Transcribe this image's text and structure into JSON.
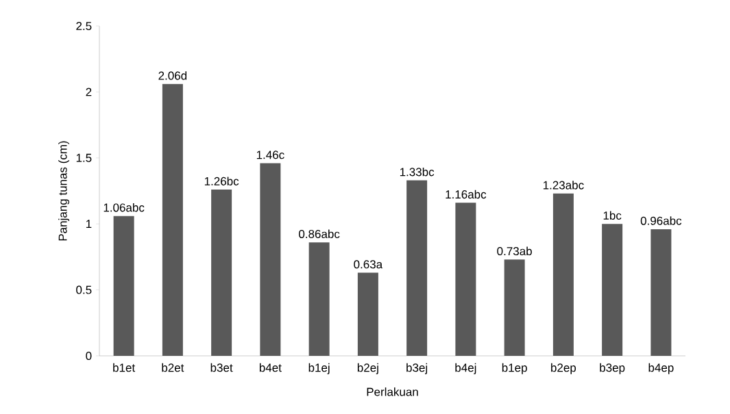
{
  "chart_data": {
    "type": "bar",
    "xlabel": "Perlakuan",
    "ylabel": "Panjang tunas (cm)",
    "categories": [
      "b1et",
      "b2et",
      "b3et",
      "b4et",
      "b1ej",
      "b2ej",
      "b3ej",
      "b4ej",
      "b1ep",
      "b2ep",
      "b3ep",
      "b4ep"
    ],
    "values": [
      1.06,
      2.06,
      1.26,
      1.46,
      0.86,
      0.63,
      1.33,
      1.16,
      0.73,
      1.23,
      1.0,
      0.96
    ],
    "value_labels": [
      "1.06abc",
      "2.06d",
      "1.26bc",
      "1.46c",
      "0.86abc",
      "0.63a",
      "1.33bc",
      "1.16abc",
      "0.73ab",
      "1.23abc",
      "1bc",
      "0.96abc"
    ],
    "color": "#595959",
    "ylim": [
      0,
      2.5
    ],
    "yticks": [
      0,
      0.5,
      1,
      1.5,
      2,
      2.5
    ],
    "grid": false
  }
}
